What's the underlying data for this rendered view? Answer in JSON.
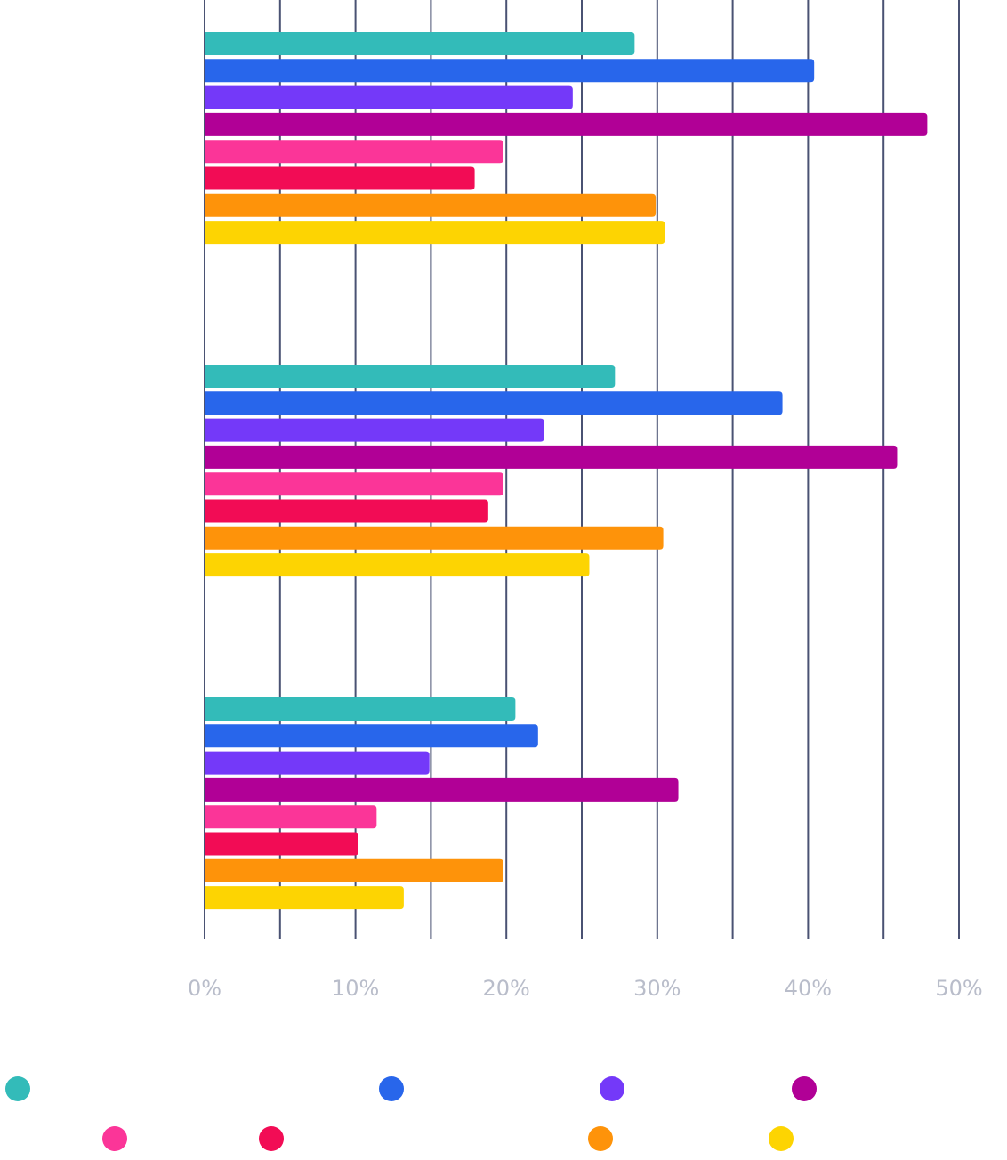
{
  "chart_data": {
    "type": "hbar",
    "categories": [
      null,
      null,
      null
    ],
    "series": [
      {
        "color": "#33bbb9",
        "values": [
          28.5,
          27.2,
          20.6
        ]
      },
      {
        "color": "#2866eb",
        "values": [
          40.4,
          38.3,
          22.1
        ]
      },
      {
        "color": "#7439f9",
        "values": [
          24.4,
          22.5,
          14.9
        ]
      },
      {
        "color": "#b10096",
        "values": [
          47.9,
          45.9,
          31.4
        ]
      },
      {
        "color": "#fb3598",
        "values": [
          19.8,
          19.8,
          11.4
        ]
      },
      {
        "color": "#f20c55",
        "values": [
          17.9,
          18.8,
          10.2
        ]
      },
      {
        "color": "#fe930a",
        "values": [
          29.9,
          30.4,
          19.8
        ]
      },
      {
        "color": "#fdd402",
        "values": [
          30.5,
          25.5,
          13.2
        ]
      }
    ],
    "xlim": [
      0,
      50
    ],
    "xticks": [
      {
        "value": 0,
        "label": "0%"
      },
      {
        "value": 10,
        "label": "10%"
      },
      {
        "value": 20,
        "label": "20%"
      },
      {
        "value": 30,
        "label": "30%"
      },
      {
        "value": 40,
        "label": "40%"
      },
      {
        "value": 50,
        "label": "50%"
      }
    ],
    "xminorgrid": [
      5,
      15,
      25,
      35,
      45
    ],
    "grid": true
  }
}
